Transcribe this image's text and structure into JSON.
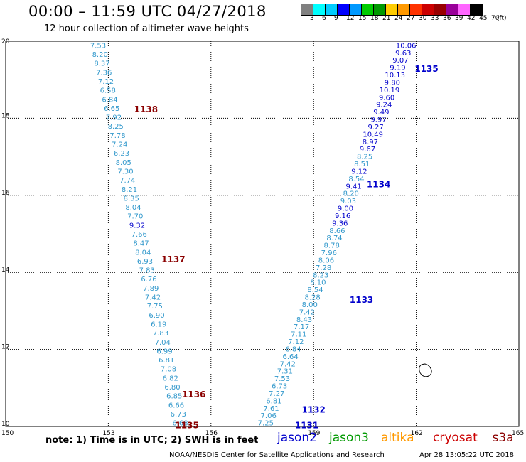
{
  "header": {
    "title": "00:00 – 11:59 UTC 04/27/2018",
    "subtitle": "12 hour collection of altimeter wave heights"
  },
  "colorbar": {
    "colors": [
      "#808080",
      "#00ffff",
      "#00ccff",
      "#0000ff",
      "#0099ff",
      "#00cc00",
      "#009900",
      "#ffcc00",
      "#ff9900",
      "#ff3300",
      "#cc0000",
      "#990000",
      "#990099",
      "#ff66ff",
      "#000000"
    ],
    "labels": [
      "3",
      "6",
      "9",
      "12",
      "15",
      "18",
      "21",
      "24",
      "27",
      "30",
      "33",
      "36",
      "39",
      "42",
      "45",
      "70",
      "(ft)"
    ]
  },
  "map": {
    "x_ticks": [
      "150",
      "153",
      "156",
      "159",
      "162",
      "165"
    ],
    "y_ticks": [
      "10",
      "12",
      "14",
      "16",
      "18",
      "20"
    ],
    "x_range": [
      150,
      165
    ],
    "y_range": [
      10,
      20
    ],
    "grid": "dotted"
  },
  "tracks": [
    {
      "id": "left",
      "color": "#3399cc",
      "start": [
        152.7,
        19.9
      ],
      "end": [
        155.1,
        10.1
      ],
      "values": [
        "7.53",
        "8.20",
        "8.37",
        "7.36",
        "7.12",
        "6.58",
        "6.84",
        "6.65",
        "7.92",
        "8.25",
        "7.78",
        "7.24",
        "6.23",
        "8.05",
        "7.30",
        "7.74",
        "8.21",
        "8.35",
        "8.04",
        "7.70",
        "9.32",
        "7.66",
        "8.47",
        "8.04",
        "6.93",
        "7.83",
        "6.76",
        "7.89",
        "7.42",
        "7.75",
        "6.90",
        "6.19",
        "7.83",
        "7.04",
        "6.99",
        "6.81",
        "7.08",
        "6.82",
        "6.80",
        "6.85",
        "6.66",
        "6.73",
        "6.68"
      ],
      "darkblue": [
        20
      ]
    },
    {
      "id": "right",
      "color": "#3399cc",
      "start": [
        161.7,
        19.9
      ],
      "end": [
        157.6,
        10.1
      ],
      "values": [
        "10.06",
        "9.63",
        "9.07",
        "9.19",
        "10.13",
        "9.80",
        "10.19",
        "9.60",
        "9.24",
        "9.49",
        "9.97",
        "9.27",
        "10.49",
        "8.97",
        "9.67",
        "8.25",
        "8.51",
        "9.12",
        "8.54",
        "9.41",
        "8.20",
        "9.03",
        "9.00",
        "9.16",
        "9.36",
        "8.66",
        "8.74",
        "8.78",
        "7.96",
        "8.06",
        "7.28",
        "8.23",
        "8.10",
        "8.54",
        "8.28",
        "8.00",
        "7.42",
        "8.43",
        "7.17",
        "7.11",
        "7.12",
        "6.84",
        "6.64",
        "7.42",
        "7.31",
        "7.53",
        "6.73",
        "7.27",
        "6.81",
        "7.61",
        "7.06",
        "7.25"
      ],
      "darkblue": [
        0,
        1,
        2,
        3,
        4,
        5,
        6,
        7,
        8,
        9,
        10,
        11,
        12,
        13,
        14,
        17,
        19,
        22,
        23,
        24
      ]
    }
  ],
  "pass_labels": [
    {
      "text": "1138",
      "color": "#8b0000",
      "lon": 154.1,
      "lat": 18.25
    },
    {
      "text": "1137",
      "color": "#8b0000",
      "lon": 154.9,
      "lat": 14.35
    },
    {
      "text": "1136",
      "color": "#8b0000",
      "lon": 155.5,
      "lat": 10.85
    },
    {
      "text": "1135",
      "color": "#8b0000",
      "lon": 155.3,
      "lat": 10.05
    },
    {
      "text": "1135",
      "color": "#0000cc",
      "lon": 162.3,
      "lat": 19.3
    },
    {
      "text": "1134",
      "color": "#0000cc",
      "lon": 160.9,
      "lat": 16.3
    },
    {
      "text": "1133",
      "color": "#0000cc",
      "lon": 160.4,
      "lat": 13.3
    },
    {
      "text": "1132",
      "color": "#0000cc",
      "lon": 159.0,
      "lat": 10.45
    },
    {
      "text": "1131",
      "color": "#0000cc",
      "lon": 158.8,
      "lat": 10.05
    }
  ],
  "footer": {
    "note": "note: 1) Time is in UTC; 2) SWH is in feet",
    "credit": "NOAA/NESDIS Center for Satellite Applications and Research",
    "timestamp": "Apr 28 13:05:22 UTC 2018",
    "legend": [
      {
        "name": "jason2",
        "color": "#0000cc"
      },
      {
        "name": "jason3",
        "color": "#009900"
      },
      {
        "name": "altika",
        "color": "#ff9900"
      },
      {
        "name": "cryosat",
        "color": "#cc0000"
      },
      {
        "name": "s3a",
        "color": "#8b0000"
      }
    ]
  }
}
